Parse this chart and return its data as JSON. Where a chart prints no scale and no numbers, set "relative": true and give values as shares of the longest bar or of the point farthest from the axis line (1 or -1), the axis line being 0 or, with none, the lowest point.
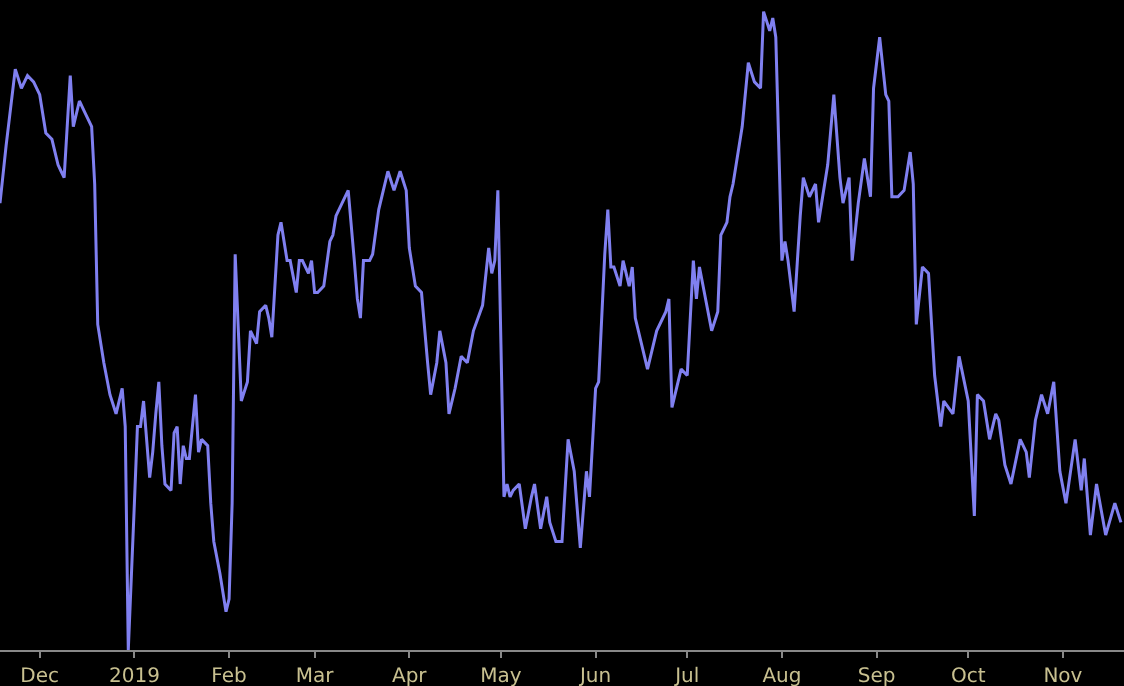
{
  "chart_data": {
    "type": "line",
    "relative": true,
    "grid": false,
    "marker": "none",
    "line_style": "solid",
    "xlim": [
      "2018-11-18",
      "2019-11-21"
    ],
    "xticks": [
      {
        "value": "2018-12-01",
        "label": "Dec"
      },
      {
        "value": "2019-01-01",
        "label": "2019"
      },
      {
        "value": "2019-02-01",
        "label": "Feb"
      },
      {
        "value": "2019-03-01",
        "label": "Mar"
      },
      {
        "value": "2019-04-01",
        "label": "Apr"
      },
      {
        "value": "2019-05-01",
        "label": "May"
      },
      {
        "value": "2019-06-01",
        "label": "Jun"
      },
      {
        "value": "2019-07-01",
        "label": "Jul"
      },
      {
        "value": "2019-08-01",
        "label": "Aug"
      },
      {
        "value": "2019-09-01",
        "label": "Sep"
      },
      {
        "value": "2019-10-01",
        "label": "Oct"
      },
      {
        "value": "2019-11-01",
        "label": "Nov"
      }
    ],
    "x": [
      "2018-11-18",
      "2018-11-20",
      "2018-11-23",
      "2018-11-25",
      "2018-11-27",
      "2018-11-29",
      "2018-12-01",
      "2018-12-03",
      "2018-12-05",
      "2018-12-07",
      "2018-12-08",
      "2018-12-09",
      "2018-12-11",
      "2018-12-12",
      "2018-12-14",
      "2018-12-16",
      "2018-12-18",
      "2018-12-19",
      "2018-12-20",
      "2018-12-22",
      "2018-12-24",
      "2018-12-26",
      "2018-12-28",
      "2018-12-29",
      "2018-12-30",
      "2019-01-01",
      "2019-01-02",
      "2019-01-03",
      "2019-01-04",
      "2019-01-06",
      "2019-01-07",
      "2019-01-08",
      "2019-01-09",
      "2019-01-10",
      "2019-01-11",
      "2019-01-13",
      "2019-01-14",
      "2019-01-15",
      "2019-01-16",
      "2019-01-17",
      "2019-01-18",
      "2019-01-19",
      "2019-01-21",
      "2019-01-22",
      "2019-01-23",
      "2019-01-25",
      "2019-01-26",
      "2019-01-27",
      "2019-01-29",
      "2019-01-31",
      "2019-02-01",
      "2019-02-02",
      "2019-02-03",
      "2019-02-05",
      "2019-02-07",
      "2019-02-08",
      "2019-02-10",
      "2019-02-11",
      "2019-02-13",
      "2019-02-14",
      "2019-02-15",
      "2019-02-17",
      "2019-02-18",
      "2019-02-20",
      "2019-02-21",
      "2019-02-23",
      "2019-02-24",
      "2019-02-25",
      "2019-02-27",
      "2019-02-28",
      "2019-03-01",
      "2019-03-02",
      "2019-03-04",
      "2019-03-06",
      "2019-03-07",
      "2019-03-08",
      "2019-03-10",
      "2019-03-12",
      "2019-03-14",
      "2019-03-15",
      "2019-03-16",
      "2019-03-17",
      "2019-03-19",
      "2019-03-20",
      "2019-03-22",
      "2019-03-25",
      "2019-03-27",
      "2019-03-29",
      "2019-03-31",
      "2019-04-01",
      "2019-04-03",
      "2019-04-05",
      "2019-04-07",
      "2019-04-08",
      "2019-04-10",
      "2019-04-11",
      "2019-04-13",
      "2019-04-14",
      "2019-04-16",
      "2019-04-18",
      "2019-04-20",
      "2019-04-22",
      "2019-04-25",
      "2019-04-27",
      "2019-04-28",
      "2019-04-29",
      "2019-04-30",
      "2019-05-01",
      "2019-05-02",
      "2019-05-03",
      "2019-05-04",
      "2019-05-05",
      "2019-05-07",
      "2019-05-09",
      "2019-05-11",
      "2019-05-12",
      "2019-05-14",
      "2019-05-16",
      "2019-05-17",
      "2019-05-19",
      "2019-05-21",
      "2019-05-23",
      "2019-05-25",
      "2019-05-27",
      "2019-05-29",
      "2019-05-30",
      "2019-06-01",
      "2019-06-02",
      "2019-06-04",
      "2019-06-05",
      "2019-06-06",
      "2019-06-07",
      "2019-06-09",
      "2019-06-10",
      "2019-06-12",
      "2019-06-13",
      "2019-06-14",
      "2019-06-17",
      "2019-06-18",
      "2019-06-21",
      "2019-06-24",
      "2019-06-25",
      "2019-06-26",
      "2019-06-28",
      "2019-06-29",
      "2019-07-01",
      "2019-07-03",
      "2019-07-04",
      "2019-07-05",
      "2019-07-09",
      "2019-07-11",
      "2019-07-12",
      "2019-07-14",
      "2019-07-15",
      "2019-07-16",
      "2019-07-19",
      "2019-07-21",
      "2019-07-23",
      "2019-07-25",
      "2019-07-26",
      "2019-07-28",
      "2019-07-29",
      "2019-07-30",
      "2019-08-01",
      "2019-08-02",
      "2019-08-03",
      "2019-08-05",
      "2019-08-07",
      "2019-08-08",
      "2019-08-10",
      "2019-08-12",
      "2019-08-13",
      "2019-08-16",
      "2019-08-18",
      "2019-08-20",
      "2019-08-21",
      "2019-08-23",
      "2019-08-24",
      "2019-08-26",
      "2019-08-28",
      "2019-08-30",
      "2019-08-31",
      "2019-09-02",
      "2019-09-04",
      "2019-09-05",
      "2019-09-06",
      "2019-09-08",
      "2019-09-10",
      "2019-09-12",
      "2019-09-13",
      "2019-09-14",
      "2019-09-16",
      "2019-09-18",
      "2019-09-20",
      "2019-09-22",
      "2019-09-23",
      "2019-09-26",
      "2019-09-28",
      "2019-10-01",
      "2019-10-03",
      "2019-10-04",
      "2019-10-06",
      "2019-10-08",
      "2019-10-10",
      "2019-10-11",
      "2019-10-13",
      "2019-10-15",
      "2019-10-18",
      "2019-10-20",
      "2019-10-21",
      "2019-10-23",
      "2019-10-25",
      "2019-10-27",
      "2019-10-29",
      "2019-10-31",
      "2019-11-02",
      "2019-11-05",
      "2019-11-07",
      "2019-11-08",
      "2019-11-10",
      "2019-11-12",
      "2019-11-15",
      "2019-11-18",
      "2019-11-20"
    ],
    "series": [
      {
        "color": "#8080f0",
        "values": [
          0.7,
          0.79,
          0.91,
          0.88,
          0.9,
          0.89,
          0.87,
          0.81,
          0.8,
          0.76,
          0.75,
          0.74,
          0.9,
          0.82,
          0.86,
          0.84,
          0.82,
          0.73,
          0.51,
          0.45,
          0.4,
          0.37,
          0.41,
          0.35,
          0.0,
          0.23,
          0.35,
          0.35,
          0.39,
          0.27,
          0.31,
          0.37,
          0.42,
          0.32,
          0.26,
          0.25,
          0.34,
          0.35,
          0.26,
          0.32,
          0.3,
          0.3,
          0.4,
          0.31,
          0.33,
          0.32,
          0.23,
          0.17,
          0.12,
          0.06,
          0.08,
          0.23,
          0.62,
          0.39,
          0.42,
          0.5,
          0.48,
          0.53,
          0.54,
          0.52,
          0.49,
          0.65,
          0.67,
          0.61,
          0.61,
          0.56,
          0.61,
          0.61,
          0.59,
          0.61,
          0.56,
          0.56,
          0.57,
          0.64,
          0.65,
          0.68,
          0.7,
          0.72,
          0.61,
          0.55,
          0.52,
          0.61,
          0.61,
          0.62,
          0.69,
          0.75,
          0.72,
          0.75,
          0.72,
          0.63,
          0.57,
          0.56,
          0.45,
          0.4,
          0.45,
          0.5,
          0.45,
          0.37,
          0.41,
          0.46,
          0.45,
          0.5,
          0.54,
          0.63,
          0.59,
          0.61,
          0.72,
          0.48,
          0.24,
          0.26,
          0.24,
          0.25,
          0.26,
          0.19,
          0.24,
          0.26,
          0.19,
          0.24,
          0.2,
          0.17,
          0.17,
          0.33,
          0.28,
          0.16,
          0.28,
          0.24,
          0.41,
          0.42,
          0.62,
          0.69,
          0.6,
          0.6,
          0.57,
          0.61,
          0.57,
          0.6,
          0.52,
          0.46,
          0.44,
          0.5,
          0.53,
          0.55,
          0.38,
          0.42,
          0.44,
          0.43,
          0.61,
          0.55,
          0.6,
          0.5,
          0.53,
          0.65,
          0.67,
          0.71,
          0.73,
          0.82,
          0.92,
          0.89,
          0.88,
          1.0,
          0.97,
          0.99,
          0.96,
          0.61,
          0.64,
          0.61,
          0.53,
          0.68,
          0.74,
          0.71,
          0.73,
          0.67,
          0.76,
          0.87,
          0.74,
          0.7,
          0.74,
          0.61,
          0.7,
          0.77,
          0.71,
          0.88,
          0.96,
          0.87,
          0.86,
          0.71,
          0.71,
          0.72,
          0.78,
          0.73,
          0.51,
          0.6,
          0.59,
          0.43,
          0.35,
          0.39,
          0.37,
          0.46,
          0.39,
          0.21,
          0.4,
          0.39,
          0.33,
          0.37,
          0.36,
          0.29,
          0.26,
          0.33,
          0.31,
          0.27,
          0.36,
          0.4,
          0.37,
          0.42,
          0.28,
          0.23,
          0.33,
          0.25,
          0.3,
          0.18,
          0.26,
          0.18,
          0.23,
          0.2
        ]
      }
    ]
  }
}
